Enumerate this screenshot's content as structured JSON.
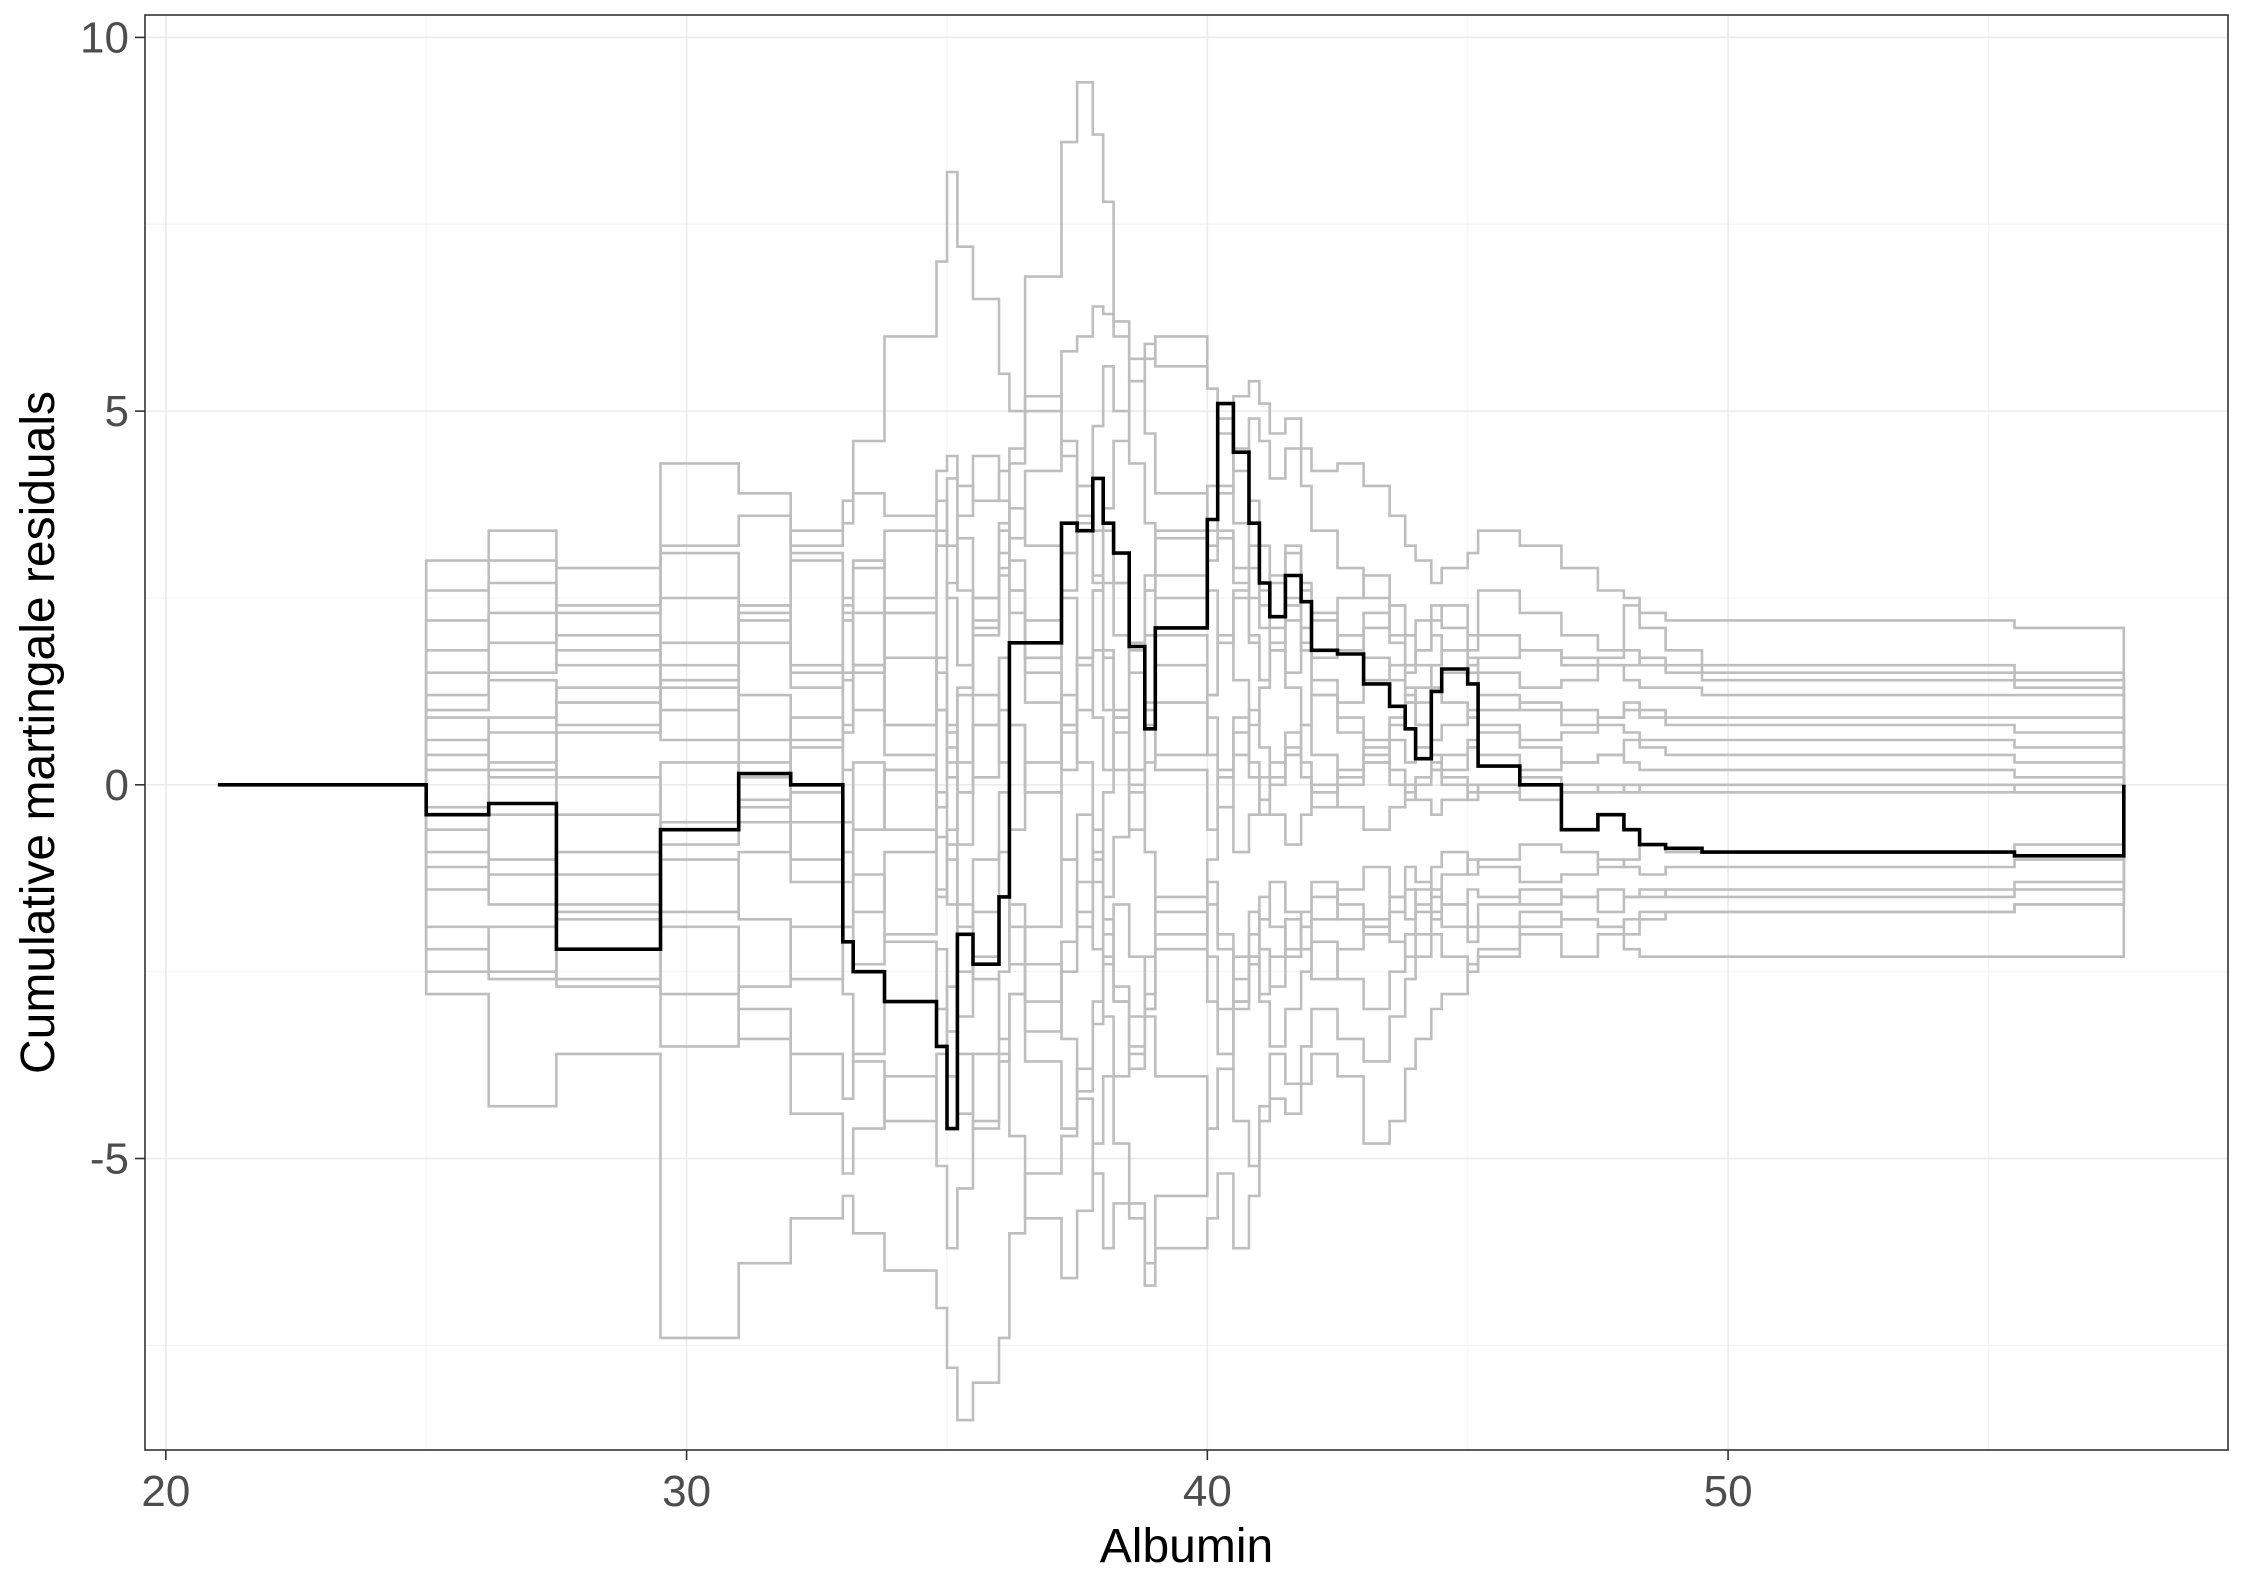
{
  "chart_data": {
    "type": "line",
    "title": "",
    "xlabel": "Albumin",
    "ylabel": "Cumulative martingale residuals",
    "xlim": [
      19.6,
      59.6
    ],
    "ylim": [
      -8.9,
      10.3
    ],
    "x_ticks": [
      20,
      30,
      40,
      50
    ],
    "y_ticks": [
      -5,
      0,
      5,
      10
    ],
    "y_tick_labels": [
      "-5",
      "0",
      "5",
      "10"
    ],
    "grid": true,
    "legend": "none",
    "colors": {
      "observed": "#000000",
      "simulated": "#bebebe",
      "grid_major": "#ebebeb",
      "grid_minor": "#f5f5f5",
      "panel_border": "#333333",
      "tick_text": "#4d4d4d"
    },
    "step_x": [
      21,
      25,
      26.2,
      27.5,
      29.5,
      31,
      32,
      33,
      33.2,
      33.8,
      34.8,
      35,
      35.2,
      35.5,
      36,
      36.2,
      36.5,
      37.2,
      37.5,
      37.8,
      38,
      38.2,
      38.5,
      38.8,
      39,
      40,
      40.2,
      40.5,
      40.8,
      41,
      41.2,
      41.5,
      41.8,
      42,
      42.5,
      43,
      43.5,
      43.8,
      44,
      44.3,
      44.5,
      45,
      45.2,
      46,
      46.8,
      47.5,
      48,
      48.3,
      48.8,
      49.5,
      52,
      55.5,
      57.6
    ],
    "observed": [
      0,
      -0.4,
      -0.25,
      -2.2,
      -0.6,
      0.15,
      0,
      -2.1,
      -2.5,
      -2.9,
      -3.5,
      -4.6,
      -2,
      -2.4,
      -1.5,
      1.9,
      1.9,
      3.5,
      3.4,
      4.1,
      3.5,
      3.1,
      1.85,
      0.75,
      2.1,
      3.55,
      5.1,
      4.45,
      3.5,
      2.7,
      2.25,
      2.8,
      2.45,
      1.8,
      1.75,
      1.35,
      1.05,
      0.75,
      0.35,
      1.25,
      1.55,
      1.35,
      0.25,
      0,
      -0.6,
      -0.4,
      -0.6,
      -0.8,
      -0.85,
      -0.9,
      -0.9,
      -0.95,
      0
    ],
    "simulated": [
      {
        "values": [
          0,
          1.2,
          1.5,
          1.8,
          1.0,
          2.2,
          3.4,
          3.8,
          4.6,
          6.0,
          7.0,
          8.2,
          7.2,
          6.5,
          5.5,
          5.0,
          6.8,
          8.6,
          9.4,
          8.7,
          7.8,
          6.2,
          5.4,
          5.7,
          6.0,
          5.3,
          4.7,
          4.2,
          4.9,
          4.6,
          4.1,
          4.5,
          4.0,
          3.4,
          2.9,
          2.5,
          2.0,
          1.5,
          1.8,
          2.2,
          2.4,
          2.0,
          2.6,
          2.3,
          2.0,
          1.8,
          2.4,
          2.1,
          1.8,
          1.4,
          1.4,
          1.3,
          0
        ]
      },
      {
        "values": [
          0,
          -2.8,
          -4.3,
          -3.6,
          -7.4,
          -6.4,
          -5.8,
          -5.5,
          -6.0,
          -6.5,
          -7.0,
          -7.8,
          -8.5,
          -8.0,
          -7.4,
          -6.0,
          -5.2,
          -4.7,
          -4.2,
          -5.2,
          -6.2,
          -5.6,
          -5.8,
          -6.7,
          -6.2,
          -5.8,
          -5.2,
          -6.2,
          -5.5,
          -4.5,
          -4.2,
          -4.4,
          -4.0,
          -3.6,
          -3.9,
          -4.8,
          -4.5,
          -3.8,
          -3.4,
          -3.0,
          -2.8,
          -2.4,
          -2.3,
          -2.0,
          -2.3,
          -2.0,
          -2.2,
          -2.3,
          -2.3,
          -2.3,
          -2.3,
          -2.3,
          0
        ]
      },
      {
        "values": [
          0,
          3.0,
          3.4,
          2.9,
          4.3,
          3.9,
          3.2,
          3.5,
          3.9,
          3.6,
          4.2,
          4.4,
          4.0,
          3.8,
          4.2,
          4.5,
          5.0,
          5.8,
          6.0,
          6.4,
          6.3,
          6.0,
          5.7,
          5.9,
          5.6,
          5.3,
          4.9,
          5.2,
          5.4,
          5.1,
          4.7,
          4.9,
          4.5,
          4.2,
          4.3,
          4.0,
          3.6,
          3.2,
          3.0,
          2.7,
          2.9,
          3.1,
          3.4,
          3.2,
          2.9,
          2.6,
          2.5,
          2.3,
          2.2,
          2.2,
          2.2,
          2.1,
          0
        ]
      },
      {
        "values": [
          0,
          1.5,
          1.9,
          2.4,
          3.2,
          3.6,
          3.1,
          2.5,
          2.9,
          3.4,
          3.8,
          3.2,
          2.6,
          2.1,
          2.8,
          3.3,
          4.2,
          4.6,
          4.0,
          3.4,
          2.7,
          2.0,
          1.5,
          2.0,
          2.5,
          3.0,
          3.3,
          2.9,
          2.5,
          2.1,
          1.8,
          1.5,
          1.9,
          2.3,
          2.0,
          1.7,
          1.4,
          1.1,
          1.3,
          1.6,
          1.8,
          1.5,
          1.2,
          1.0,
          0.8,
          0.9,
          1.1,
          0.9,
          0.8,
          0.8,
          0.8,
          0.7,
          0
        ]
      },
      {
        "values": [
          0,
          -0.6,
          -1.2,
          -1.6,
          -0.8,
          -0.3,
          -1.0,
          -1.9,
          -2.4,
          -2.0,
          -1.4,
          -0.8,
          -1.6,
          -2.6,
          -3.4,
          -2.8,
          -1.9,
          -1.0,
          -0.4,
          -1.3,
          -2.3,
          -2.9,
          -3.6,
          -3.0,
          -2.2,
          -1.6,
          -2.2,
          -2.9,
          -2.4,
          -1.8,
          -1.3,
          -1.7,
          -2.2,
          -1.8,
          -1.4,
          -1.1,
          -1.5,
          -1.8,
          -1.4,
          -1.1,
          -0.9,
          -1.2,
          -1.0,
          -0.8,
          -0.9,
          -1.1,
          -1.0,
          -0.8,
          -0.9,
          -0.9,
          -0.9,
          -0.8,
          0
        ]
      },
      {
        "values": [
          0,
          0.4,
          0.9,
          1.3,
          0.6,
          -0.2,
          0.5,
          1.4,
          1.0,
          0.4,
          -0.3,
          0.5,
          1.3,
          2.0,
          2.9,
          3.7,
          3.2,
          2.5,
          1.6,
          0.9,
          0.2,
          0.9,
          1.8,
          2.6,
          3.3,
          4.0,
          3.4,
          2.7,
          2.0,
          1.4,
          1.9,
          2.4,
          1.8,
          1.2,
          0.7,
          0.3,
          0.8,
          1.2,
          0.8,
          0.4,
          0.2,
          0.5,
          0.7,
          0.5,
          0.3,
          0.4,
          0.6,
          0.5,
          0.4,
          0.4,
          0.4,
          0.3,
          0
        ]
      },
      {
        "values": [
          0,
          -1.4,
          -1.0,
          -2.6,
          -1.9,
          -3.0,
          -3.6,
          -4.2,
          -3.6,
          -2.9,
          -2.2,
          -3.3,
          -4.4,
          -3.6,
          -2.5,
          -1.6,
          -2.4,
          -3.4,
          -4.1,
          -3.2,
          -2.4,
          -1.6,
          -2.3,
          -3.1,
          -3.9,
          -4.6,
          -3.8,
          -3.0,
          -2.3,
          -2.9,
          -3.5,
          -3.0,
          -2.5,
          -2.1,
          -2.6,
          -3.0,
          -2.5,
          -2.0,
          -1.7,
          -1.4,
          -1.6,
          -1.9,
          -1.6,
          -1.4,
          -1.5,
          -1.7,
          -1.5,
          -1.4,
          -1.5,
          -1.5,
          -1.5,
          -1.4,
          0
        ]
      },
      {
        "values": [
          0,
          2.2,
          2.7,
          2.0,
          1.4,
          2.4,
          3.0,
          2.3,
          1.6,
          0.8,
          1.7,
          2.7,
          3.6,
          4.4,
          3.8,
          3.0,
          2.2,
          3.1,
          4.0,
          4.8,
          5.6,
          5.0,
          4.3,
          3.5,
          2.8,
          3.4,
          4.0,
          3.5,
          2.9,
          2.4,
          2.8,
          3.2,
          2.7,
          2.2,
          1.8,
          2.1,
          2.4,
          2.0,
          1.6,
          1.3,
          1.5,
          1.7,
          1.5,
          1.3,
          1.4,
          1.6,
          1.4,
          1.3,
          1.3,
          1.2,
          1.2,
          1.2,
          0
        ]
      },
      {
        "values": [
          0,
          -2.2,
          -2.6,
          -1.8,
          -2.8,
          -3.4,
          -4.4,
          -5.2,
          -4.6,
          -3.9,
          -5.1,
          -6.2,
          -5.4,
          -4.5,
          -3.6,
          -4.7,
          -5.8,
          -6.6,
          -5.7,
          -4.8,
          -3.9,
          -4.8,
          -5.6,
          -6.4,
          -5.5,
          -4.6,
          -3.8,
          -4.5,
          -5.1,
          -4.3,
          -3.6,
          -4.0,
          -3.5,
          -3.0,
          -3.4,
          -3.7,
          -3.1,
          -2.6,
          -2.3,
          -2.0,
          -2.3,
          -2.5,
          -2.2,
          -1.9,
          -1.8,
          -1.9,
          -2.0,
          -1.8,
          -1.7,
          -1.7,
          -1.7,
          -1.6,
          0
        ]
      },
      {
        "values": [
          0,
          0.9,
          0.3,
          1.1,
          1.9,
          1.2,
          0.6,
          1.5,
          2.3,
          1.7,
          1.0,
          0.3,
          1.2,
          2.2,
          3.1,
          2.3,
          1.5,
          0.7,
          1.6,
          2.6,
          3.4,
          2.7,
          1.9,
          1.1,
          0.4,
          1.2,
          2.0,
          1.4,
          0.8,
          1.3,
          1.8,
          1.3,
          0.8,
          1.2,
          0.9,
          0.6,
          0.9,
          1.1,
          0.8,
          0.6,
          0.8,
          1.0,
          0.8,
          0.6,
          0.7,
          0.8,
          0.7,
          0.6,
          0.6,
          0.6,
          0.6,
          0.5,
          0
        ]
      },
      {
        "values": [
          0,
          -0.9,
          -0.4,
          -1.2,
          -0.5,
          0.3,
          -0.5,
          -1.3,
          -0.6,
          0.2,
          -0.7,
          -1.6,
          -2.5,
          -1.7,
          -0.9,
          -1.9,
          -2.9,
          -2.1,
          -1.3,
          -2.2,
          -3.1,
          -3.9,
          -3.1,
          -2.3,
          -1.5,
          -2.3,
          -3.0,
          -2.3,
          -1.7,
          -2.2,
          -2.7,
          -2.2,
          -1.7,
          -1.3,
          -1.6,
          -1.9,
          -1.5,
          -1.1,
          -1.3,
          -1.5,
          -1.2,
          -1.0,
          -1.1,
          -1.3,
          -1.2,
          -1.0,
          -1.1,
          -1.2,
          -1.1,
          -1.1,
          -1.1,
          -1.0,
          0
        ]
      },
      {
        "values": [
          0,
          1.8,
          2.3,
          1.6,
          2.5,
          1.9,
          1.3,
          2.2,
          3.0,
          2.3,
          3.2,
          4.1,
          3.3,
          2.5,
          3.4,
          4.3,
          5.2,
          4.4,
          3.6,
          2.8,
          3.7,
          4.6,
          5.4,
          4.7,
          3.9,
          3.2,
          3.9,
          4.5,
          3.8,
          3.2,
          2.7,
          3.1,
          2.6,
          2.2,
          2.5,
          2.8,
          2.4,
          2.0,
          2.2,
          2.4,
          2.1,
          1.8,
          2.0,
          1.8,
          1.6,
          1.7,
          1.8,
          1.6,
          1.5,
          1.5,
          1.5,
          1.4,
          0
        ]
      },
      {
        "values": [
          0,
          -1.9,
          -2.5,
          -1.7,
          -1.0,
          -1.8,
          -2.6,
          -1.9,
          -1.2,
          -2.1,
          -3.0,
          -3.9,
          -3.1,
          -2.3,
          -1.5,
          -2.4,
          -3.3,
          -2.5,
          -1.7,
          -0.9,
          -1.8,
          -2.7,
          -3.5,
          -2.8,
          -2.0,
          -1.3,
          -2.0,
          -2.6,
          -2.0,
          -1.5,
          -1.9,
          -2.3,
          -1.9,
          -1.5,
          -1.8,
          -2.0,
          -1.7,
          -1.4,
          -1.6,
          -1.8,
          -1.6,
          -1.4,
          -1.5,
          -1.6,
          -1.5,
          -1.4,
          -1.5,
          -1.5,
          -1.4,
          -1.4,
          -1.4,
          -1.3,
          0
        ]
      },
      {
        "values": [
          0,
          0.2,
          0.7,
          0.1,
          -0.6,
          0.1,
          0.9,
          0.2,
          -0.6,
          0.2,
          1.0,
          0.1,
          -0.8,
          0.1,
          1.0,
          1.9,
          1.1,
          0.2,
          1.0,
          1.8,
          1.0,
          0.2,
          -0.6,
          0.3,
          1.1,
          0.4,
          -0.3,
          0.4,
          1.0,
          0.5,
          0.0,
          0.4,
          0.8,
          0.4,
          0.1,
          0.4,
          0.6,
          0.3,
          0.5,
          0.2,
          0.4,
          0.6,
          0.4,
          0.2,
          0.3,
          0.4,
          0.3,
          0.2,
          0.2,
          0.2,
          0.2,
          0.1,
          0
        ]
      },
      {
        "values": [
          0,
          -2.5,
          -1.9,
          -2.7,
          -3.5,
          -2.7,
          -1.9,
          -2.8,
          -3.7,
          -4.5,
          -3.6,
          -2.7,
          -3.6,
          -4.6,
          -3.7,
          -2.8,
          -3.7,
          -4.6,
          -3.8,
          -2.9,
          -2.0,
          -2.9,
          -3.8,
          -3.0,
          -2.2,
          -2.9,
          -3.6,
          -2.9,
          -2.3,
          -2.8,
          -2.3,
          -1.8,
          -2.2,
          -2.6,
          -2.2,
          -1.8,
          -2.1,
          -2.3,
          -2.0,
          -1.7,
          -1.9,
          -2.1,
          -1.9,
          -1.7,
          -1.8,
          -1.9,
          -1.8,
          -1.7,
          -1.7,
          -1.7,
          -1.7,
          -1.6,
          0
        ]
      },
      {
        "values": [
          0,
          1.0,
          1.4,
          0.8,
          1.6,
          2.4,
          1.6,
          0.8,
          1.6,
          2.5,
          3.4,
          2.5,
          1.6,
          2.5,
          3.5,
          2.6,
          1.7,
          2.6,
          3.5,
          2.7,
          1.8,
          1.0,
          1.9,
          2.8,
          2.0,
          1.2,
          1.9,
          2.5,
          1.9,
          1.4,
          1.8,
          2.2,
          1.8,
          1.4,
          1.1,
          1.4,
          1.6,
          1.3,
          1.1,
          1.3,
          1.1,
          0.9,
          1.0,
          1.1,
          1.0,
          0.9,
          1.0,
          1.0,
          0.9,
          0.9,
          0.9,
          0.9,
          0
        ]
      },
      {
        "values": [
          0,
          -0.3,
          0.2,
          -0.4,
          0.3,
          -0.5,
          -1.3,
          -0.5,
          0.3,
          -0.6,
          -1.5,
          -0.6,
          0.3,
          1.2,
          0.3,
          -0.6,
          0.3,
          1.2,
          0.3,
          -0.6,
          -1.5,
          -0.7,
          0.2,
          1.0,
          0.2,
          -0.6,
          0.1,
          0.7,
          0.1,
          -0.4,
          0.1,
          0.5,
          0.1,
          -0.3,
          0.0,
          0.3,
          0.0,
          -0.2,
          0.0,
          0.2,
          0.0,
          -0.2,
          -0.1,
          0.0,
          -0.1,
          0.0,
          -0.1,
          0.0,
          0.0,
          0.0,
          0.0,
          0.0,
          0
        ]
      },
      {
        "values": [
          0,
          2.6,
          3.0,
          2.3,
          3.1,
          2.3,
          1.5,
          2.4,
          1.6,
          0.8,
          1.7,
          0.8,
          -0.1,
          0.8,
          1.7,
          2.6,
          1.7,
          0.8,
          1.7,
          2.6,
          3.5,
          2.7,
          1.8,
          2.6,
          3.4,
          2.6,
          1.9,
          2.6,
          3.2,
          2.6,
          2.1,
          2.5,
          2.1,
          1.7,
          2.0,
          2.3,
          1.9,
          1.6,
          1.8,
          2.0,
          1.8,
          1.6,
          1.7,
          1.8,
          1.7,
          1.6,
          1.6,
          1.7,
          1.6,
          1.6,
          1.6,
          1.5,
          0
        ]
      },
      {
        "values": [
          0,
          -1.1,
          -1.6,
          -0.9,
          -1.7,
          -0.9,
          -0.1,
          -0.9,
          -1.7,
          -0.9,
          -0.1,
          -1.0,
          -1.9,
          -1.0,
          -0.1,
          0.8,
          -0.1,
          -1.0,
          -1.9,
          -1.0,
          -0.1,
          0.7,
          -0.1,
          -0.9,
          -1.7,
          -1.0,
          -0.3,
          -0.9,
          -0.4,
          0.1,
          -0.4,
          -0.8,
          -0.4,
          0.0,
          -0.3,
          -0.6,
          -0.3,
          0.0,
          -0.2,
          -0.4,
          -0.2,
          0.0,
          -0.1,
          -0.2,
          -0.1,
          0.0,
          -0.1,
          -0.1,
          -0.1,
          -0.1,
          -0.1,
          -0.1,
          0
        ]
      },
      {
        "values": [
          0,
          0.6,
          0.1,
          0.7,
          1.3,
          0.6,
          -0.1,
          0.7,
          1.5,
          2.3,
          1.5,
          0.7,
          -0.1,
          0.8,
          1.7,
          0.8,
          -0.1,
          0.8,
          1.7,
          2.6,
          1.7,
          0.9,
          0.0,
          0.8,
          1.6,
          0.9,
          0.2,
          0.9,
          0.3,
          -0.2,
          0.3,
          0.7,
          0.3,
          -0.1,
          0.2,
          0.5,
          0.2,
          -0.1,
          0.1,
          0.3,
          0.1,
          -0.1,
          0.0,
          0.1,
          0.0,
          -0.1,
          0.0,
          0.0,
          0.0,
          0.0,
          0.0,
          -0.1,
          0
        ]
      }
    ]
  }
}
